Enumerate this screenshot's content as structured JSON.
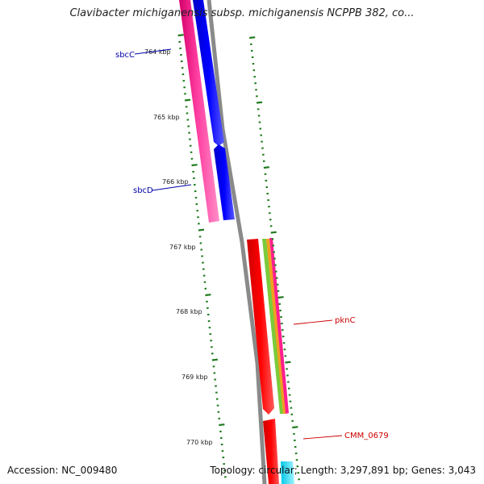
{
  "title": "Clavibacter michiganensis subsp. michiganensis NCPPB 382, co...",
  "accession": "Accession: NC_009480",
  "summary": "Topology: circular; Length: 3,297,891 bp; Genes: 3,043",
  "colors": {
    "backbone": "#8a8a8a",
    "tick": "#1e7a1e",
    "label_blue": "#0000aa",
    "label_red": "#cc0000",
    "magenta": "#ff1f8f",
    "blue": "#0000ff",
    "red": "#ff0000",
    "cyan": "#22e0ff"
  },
  "ticks": [
    {
      "kbp": 764,
      "label": "764 kbp"
    },
    {
      "kbp": 765,
      "label": "765 kbp"
    },
    {
      "kbp": 766,
      "label": "766 kbp"
    },
    {
      "kbp": 767,
      "label": "767 kbp"
    },
    {
      "kbp": 768,
      "label": "768 kbp"
    },
    {
      "kbp": 769,
      "label": "769 kbp"
    },
    {
      "kbp": 770,
      "label": "770 kbp"
    }
  ],
  "genes": [
    {
      "name": "sbcC",
      "color": "blue"
    },
    {
      "name": "sbcD",
      "color": "blue"
    },
    {
      "name": "pknC",
      "color": "red"
    },
    {
      "name": "CMM_0679",
      "color": "red"
    }
  ]
}
